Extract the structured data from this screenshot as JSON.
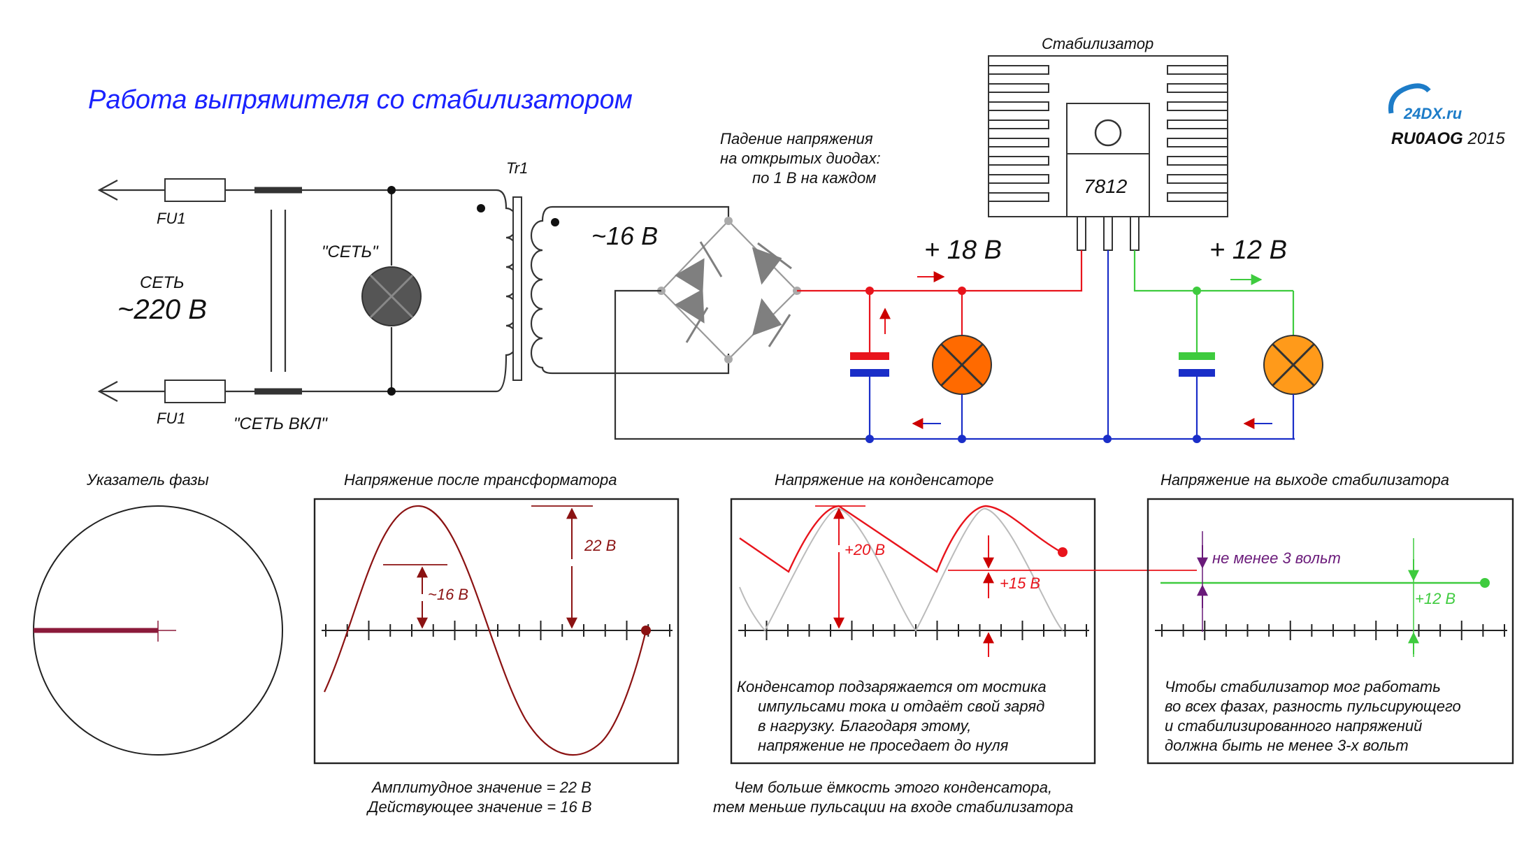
{
  "title": "Работа выпрямителя со стабилизатором",
  "logo": {
    "text": "24DX.ru",
    "author": "RU0AOG",
    "year": "2015"
  },
  "circuit": {
    "fuse_top": "FU1",
    "fuse_bottom": "FU1",
    "mains_label": "СЕТЬ",
    "mains_voltage": "~220 В",
    "lamp_mains_label": "\"СЕТЬ\"",
    "lamp_power_label": "\"СЕТЬ ВКЛ\"",
    "transformer_label": "Tr1",
    "secondary_voltage": "~16 В",
    "diode_note": [
      "Падение напряжения",
      "на открытых диодах:",
      "по 1 В на каждом"
    ],
    "rectified_voltage": "+ 18 В",
    "stabilizer_title": "Стабилизатор",
    "stabilizer_chip": "7812",
    "output_voltage": "+ 12 В",
    "colors": {
      "positive_raw": "#e8141c",
      "positive_stab": "#3ecb3e",
      "ground": "#1a2ec8",
      "lamp_raw": "#ff6a00",
      "lamp_stab": "#ff9a1a",
      "lamp_mains": "#555555"
    }
  },
  "panels": {
    "phase": {
      "title": "Указатель фазы"
    },
    "transformer": {
      "title": "Напряжение после трансформатора",
      "rms_label": "~16 В",
      "amp_label": "22 В",
      "caption": [
        "Амплитудное значение = 22 В",
        "Действующее значение = 16 В"
      ]
    },
    "capacitor": {
      "title": "Напряжение на конденсаторе",
      "peak_label": "+20 В",
      "min_label": "+15 В",
      "text": [
        "Конденсатор подзаряжается от мостика",
        "импульсами тока и отдаёт свой заряд",
        "в нагрузку. Благодаря этому,",
        "напряжение не проседает до нуля"
      ],
      "caption": [
        "Чем больше ёмкость этого конденсатора,",
        "тем меньше пульсации на входе стабилизатора"
      ]
    },
    "output": {
      "title": "Напряжение на выходе стабилизатора",
      "margin_label": "не менее 3 вольт",
      "out_label": "+12 В",
      "text": [
        "Чтобы стабилизатор мог работать",
        "во всех фазах, разность пульсирующего",
        "и стабилизированного напряжений",
        "должна быть не менее 3-х вольт"
      ]
    }
  }
}
